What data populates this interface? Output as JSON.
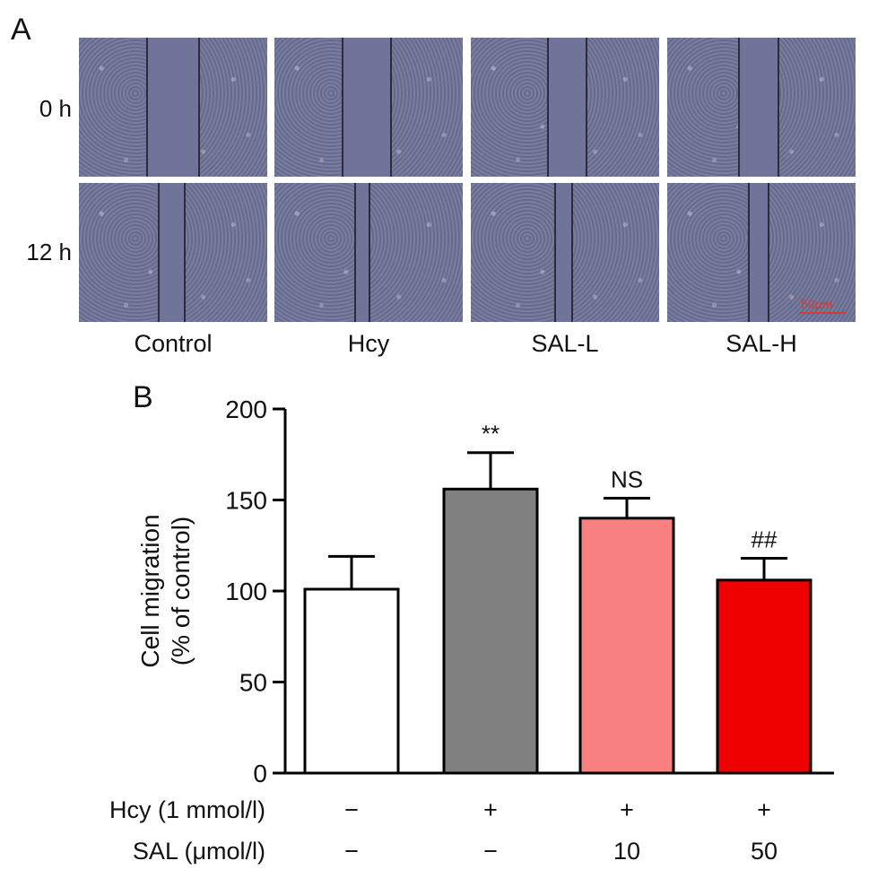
{
  "panel_a": {
    "letter": "A",
    "rows": [
      "0 h",
      "12 h"
    ],
    "columns": [
      "Control",
      "Hcy",
      "SAL-L",
      "SAL-H"
    ],
    "scale_label": "50μm"
  },
  "chart_data": {
    "type": "bar",
    "panel_letter": "B",
    "ylabel_line1": "Cell migration",
    "ylabel_line2": "(% of control)",
    "ylim": [
      0,
      200
    ],
    "yticks": [
      "0",
      "50",
      "100",
      "150",
      "200"
    ],
    "values": [
      101,
      156,
      140,
      106
    ],
    "errors": [
      18,
      20,
      11,
      12
    ],
    "annotations": [
      "",
      "**",
      "NS",
      "##"
    ],
    "bar_colors": [
      "#ffffff",
      "#808080",
      "#f88080",
      "#ee0000"
    ],
    "conditions": [
      {
        "label": "Hcy (1 mmol/l)",
        "values": [
          "−",
          "+",
          "+",
          "+"
        ]
      },
      {
        "label": "SAL (μmol/l)",
        "values": [
          "−",
          "−",
          "10",
          "50"
        ]
      }
    ]
  }
}
